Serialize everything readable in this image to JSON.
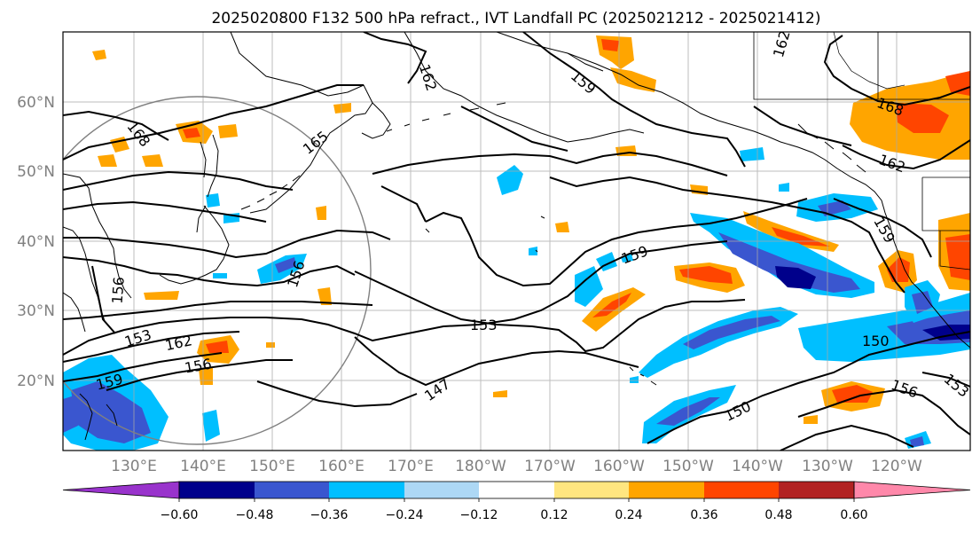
{
  "title": "2025020800 F132 500 hPa refract., IVT Landfall PC (2025021212 - 2025021412)",
  "lat_labels": [
    "60°N",
    "50°N",
    "40°N",
    "30°N",
    "20°N"
  ],
  "lon_labels": [
    "130°E",
    "140°E",
    "150°E",
    "160°E",
    "170°E",
    "180°W",
    "170°W",
    "160°W",
    "150°W",
    "140°W",
    "130°W",
    "120°W"
  ],
  "contour_labels": [
    "168",
    "165",
    "162",
    "159",
    "156",
    "153",
    "150",
    "147"
  ],
  "colorbar": {
    "colors": [
      "#9933cc",
      "#00008b",
      "#3a56cf",
      "#00bfff",
      "#add8f5",
      "#ffffff",
      "#ffe680",
      "#ffa500",
      "#ff4500",
      "#b22222",
      "#ff88aa"
    ],
    "tick_labels": [
      "−0.60",
      "−0.48",
      "−0.36",
      "−0.24",
      "−0.12",
      "0.12",
      "0.24",
      "0.36",
      "0.48",
      "0.60"
    ]
  },
  "colors": {
    "contour": "#000000",
    "coast": "#000000",
    "grid": "#a9a9a9",
    "circle": "#808080",
    "tick_label": "#808080"
  }
}
